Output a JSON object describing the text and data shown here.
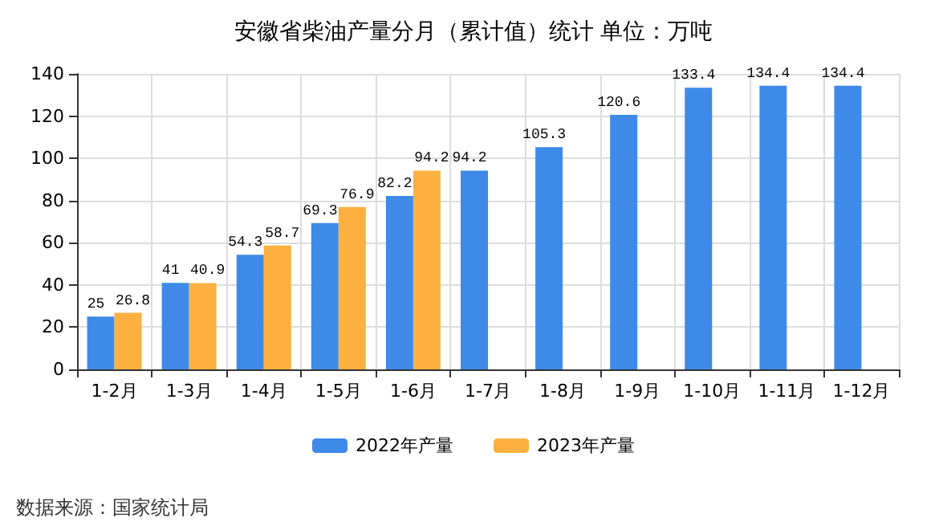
{
  "chart_data": {
    "type": "bar",
    "title": "安徽省柴油产量分月（累计值）统计 单位：万吨",
    "categories": [
      "1-2月",
      "1-3月",
      "1-4月",
      "1-5月",
      "1-6月",
      "1-7月",
      "1-8月",
      "1-9月",
      "1-10月",
      "1-11月",
      "1-12月"
    ],
    "series": [
      {
        "name": "2022年产量",
        "color": "#3f8ae8",
        "values": [
          25,
          41,
          54.3,
          69.3,
          82.2,
          94.2,
          105.3,
          120.6,
          133.4,
          134.4,
          134.4
        ]
      },
      {
        "name": "2023年产量",
        "color": "#fbb040",
        "values": [
          26.8,
          40.9,
          58.7,
          76.9,
          94.2,
          null,
          null,
          null,
          null,
          null,
          null
        ]
      }
    ],
    "ylim": [
      0,
      140
    ],
    "yticks": [
      0,
      20,
      40,
      60,
      80,
      100,
      120,
      140
    ],
    "grid": true,
    "legend": "bottom",
    "data_labels": true,
    "annotations": [
      "数据来源：国家统计局"
    ]
  }
}
